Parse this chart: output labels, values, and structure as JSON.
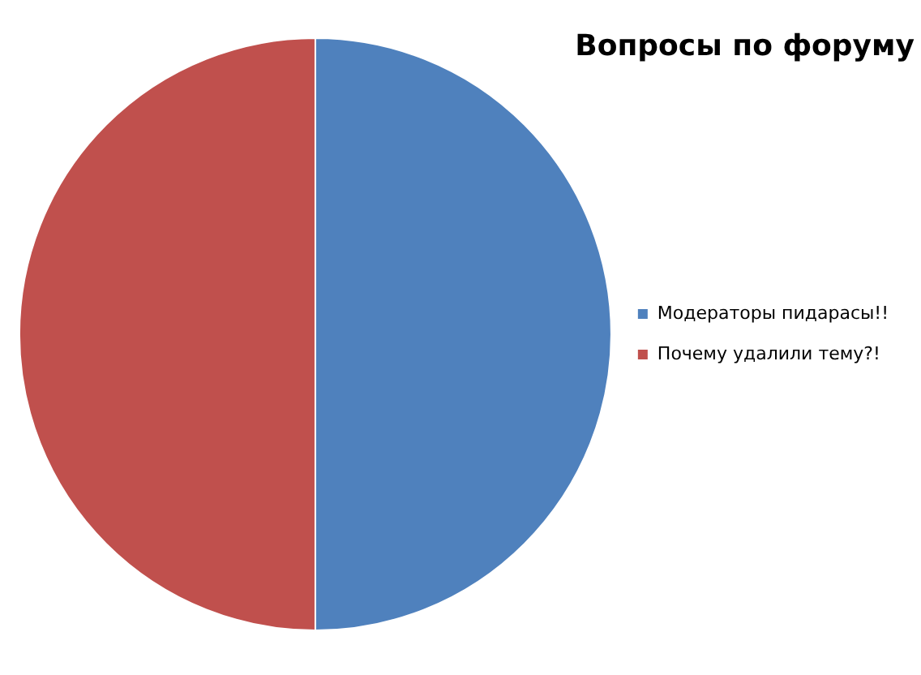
{
  "chart_data": {
    "type": "pie",
    "title": "Вопросы по форуму",
    "categories": [
      "Модераторы пидарасы!!",
      "Почему удалили тему?!"
    ],
    "values": [
      50,
      50
    ],
    "colors": [
      "#4f81bd",
      "#c0504d"
    ],
    "legend": "right"
  }
}
